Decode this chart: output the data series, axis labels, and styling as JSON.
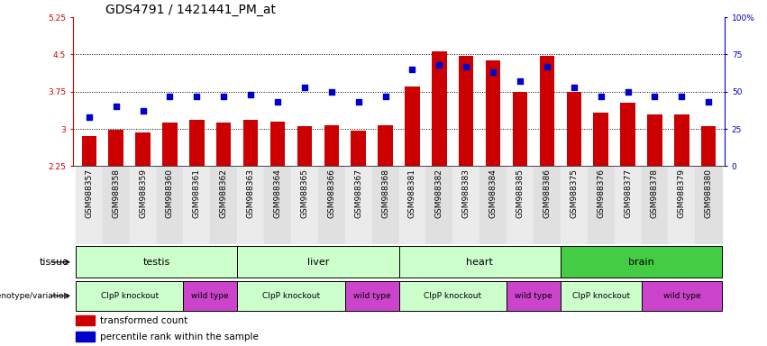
{
  "title": "GDS4791 / 1421441_PM_at",
  "samples": [
    "GSM988357",
    "GSM988358",
    "GSM988359",
    "GSM988360",
    "GSM988361",
    "GSM988362",
    "GSM988363",
    "GSM988364",
    "GSM988365",
    "GSM988366",
    "GSM988367",
    "GSM988368",
    "GSM988381",
    "GSM988382",
    "GSM988383",
    "GSM988384",
    "GSM988385",
    "GSM988386",
    "GSM988375",
    "GSM988376",
    "GSM988377",
    "GSM988378",
    "GSM988379",
    "GSM988380"
  ],
  "bar_values": [
    2.85,
    2.98,
    2.93,
    3.12,
    3.18,
    3.12,
    3.18,
    3.15,
    3.05,
    3.08,
    2.97,
    3.07,
    3.85,
    4.57,
    4.48,
    4.38,
    3.75,
    4.48,
    3.75,
    3.32,
    3.52,
    3.3,
    3.3,
    3.05
  ],
  "percentile_values": [
    33,
    40,
    37,
    47,
    47,
    47,
    48,
    43,
    53,
    50,
    43,
    47,
    65,
    68,
    67,
    63,
    57,
    67,
    53,
    47,
    50,
    47,
    47,
    43
  ],
  "y_min": 2.25,
  "y_max": 5.25,
  "y_ticks": [
    2.25,
    3.0,
    3.75,
    4.5,
    5.25
  ],
  "y_tick_labels": [
    "2.25",
    "3",
    "3.75",
    "4.5",
    "5.25"
  ],
  "y2_ticks": [
    0,
    25,
    50,
    75,
    100
  ],
  "y2_tick_labels": [
    "0",
    "25",
    "50",
    "75",
    "100%"
  ],
  "hlines": [
    3.0,
    3.75,
    4.5
  ],
  "bar_color": "#cc0000",
  "dot_color": "#0000cc",
  "bar_width": 0.55,
  "tissue_groups": [
    {
      "label": "testis",
      "start": 0,
      "end": 6,
      "color": "#ccffcc"
    },
    {
      "label": "liver",
      "start": 6,
      "end": 12,
      "color": "#ccffcc"
    },
    {
      "label": "heart",
      "start": 12,
      "end": 18,
      "color": "#ccffcc"
    },
    {
      "label": "brain",
      "start": 18,
      "end": 24,
      "color": "#44cc44"
    }
  ],
  "genotype_groups": [
    {
      "label": "ClpP knockout",
      "start": 0,
      "end": 4,
      "color": "#ccffcc"
    },
    {
      "label": "wild type",
      "start": 4,
      "end": 6,
      "color": "#cc44cc"
    },
    {
      "label": "ClpP knockout",
      "start": 6,
      "end": 10,
      "color": "#ccffcc"
    },
    {
      "label": "wild type",
      "start": 10,
      "end": 12,
      "color": "#cc44cc"
    },
    {
      "label": "ClpP knockout",
      "start": 12,
      "end": 16,
      "color": "#ccffcc"
    },
    {
      "label": "wild type",
      "start": 16,
      "end": 18,
      "color": "#cc44cc"
    },
    {
      "label": "ClpP knockout",
      "start": 18,
      "end": 21,
      "color": "#ccffcc"
    },
    {
      "label": "wild type",
      "start": 21,
      "end": 24,
      "color": "#cc44cc"
    }
  ],
  "tissue_label": "tissue",
  "genotype_label": "genotype/variation",
  "legend_items": [
    {
      "label": "transformed count",
      "color": "#cc0000"
    },
    {
      "label": "percentile rank within the sample",
      "color": "#0000cc"
    }
  ],
  "bg_color": "#ffffff",
  "plot_bg": "#ffffff",
  "title_fontsize": 10,
  "tick_fontsize": 6.5,
  "row_fontsize": 8,
  "legend_fontsize": 7.5
}
